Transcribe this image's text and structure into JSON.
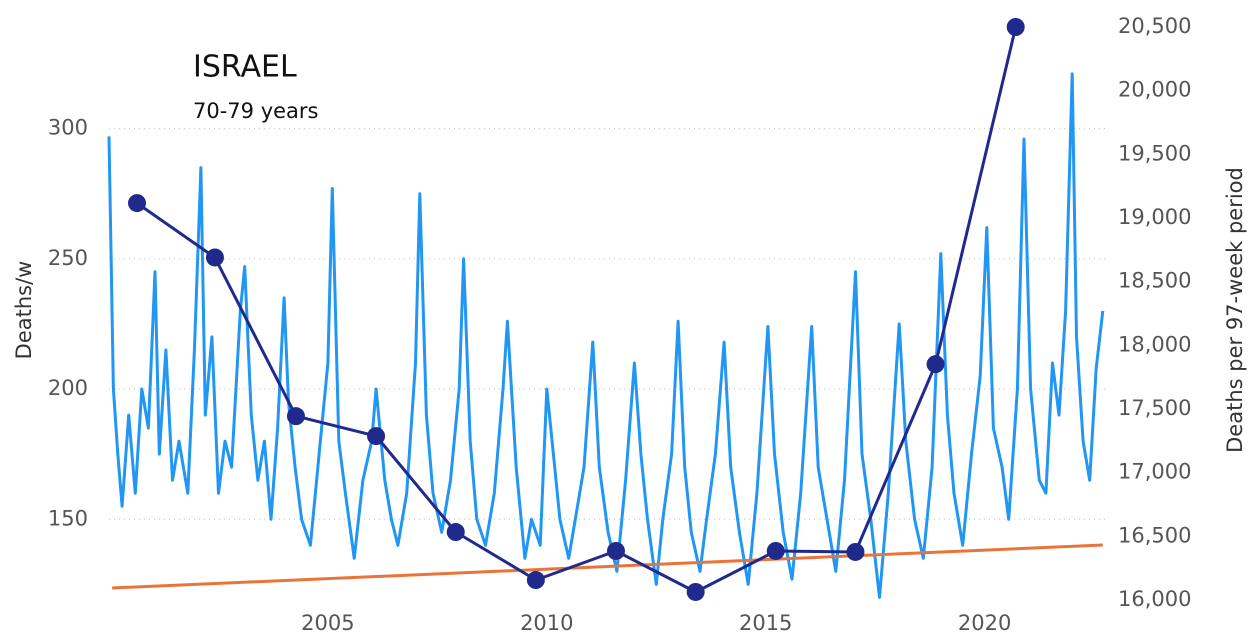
{
  "chart_data": {
    "type": "line",
    "annotations": [
      "ISRAEL",
      "70-79 years"
    ],
    "y_label": "Deaths/w",
    "y2_label": "Deaths per 97-week period",
    "xlim": [
      2000,
      2022.75
    ],
    "xticks": [
      2005,
      2010,
      2015,
      2020
    ],
    "ylim": [
      119,
      339
    ],
    "yticks": [
      150,
      200,
      250,
      300
    ],
    "y2lim": [
      16000,
      20500
    ],
    "y2ticks": [
      {
        "value": 16000,
        "label": "16,000"
      },
      {
        "value": 16500,
        "label": "16,500"
      },
      {
        "value": 17000,
        "label": "17,000"
      },
      {
        "value": 17500,
        "label": "17,500"
      },
      {
        "value": 18000,
        "label": "18,000"
      },
      {
        "value": 18500,
        "label": "18,500"
      },
      {
        "value": 19000,
        "label": "19,000"
      },
      {
        "value": 19500,
        "label": "19,500"
      },
      {
        "value": 20000,
        "label": "20,000"
      },
      {
        "value": 20500,
        "label": "20,500"
      }
    ],
    "grid": true,
    "series": [
      {
        "color": "#2196f3",
        "axis": "y",
        "markers": false,
        "x": [
          2000.0,
          2000.1,
          2000.2,
          2000.3,
          2000.45,
          2000.6,
          2000.75,
          2000.9,
          2001.05,
          2001.15,
          2001.3,
          2001.45,
          2001.6,
          2001.8,
          2001.95,
          2002.1,
          2002.2,
          2002.35,
          2002.5,
          2002.65,
          2002.8,
          2003.0,
          2003.1,
          2003.25,
          2003.4,
          2003.55,
          2003.7,
          2003.85,
          2004.0,
          2004.1,
          2004.25,
          2004.4,
          2004.6,
          2004.8,
          2005.0,
          2005.1,
          2005.25,
          2005.4,
          2005.6,
          2005.8,
          2006.0,
          2006.1,
          2006.3,
          2006.45,
          2006.6,
          2006.8,
          2007.0,
          2007.1,
          2007.25,
          2007.4,
          2007.6,
          2007.8,
          2008.0,
          2008.1,
          2008.25,
          2008.4,
          2008.6,
          2008.8,
          2009.0,
          2009.1,
          2009.3,
          2009.5,
          2009.65,
          2009.85,
          2010.0,
          2010.15,
          2010.3,
          2010.5,
          2010.65,
          2010.85,
          2011.05,
          2011.2,
          2011.4,
          2011.6,
          2011.8,
          2012.0,
          2012.15,
          2012.3,
          2012.5,
          2012.65,
          2012.85,
          2013.0,
          2013.15,
          2013.3,
          2013.5,
          2013.65,
          2013.85,
          2014.05,
          2014.2,
          2014.4,
          2014.6,
          2014.8,
          2015.05,
          2015.2,
          2015.4,
          2015.6,
          2015.8,
          2016.05,
          2016.2,
          2016.4,
          2016.6,
          2016.8,
          2017.05,
          2017.2,
          2017.4,
          2017.6,
          2017.8,
          2018.05,
          2018.2,
          2018.4,
          2018.6,
          2018.8,
          2019.0,
          2019.15,
          2019.3,
          2019.5,
          2019.7,
          2019.9,
          2020.05,
          2020.2,
          2020.4,
          2020.55,
          2020.75,
          2020.9,
          2021.05,
          2021.25,
          2021.4,
          2021.55,
          2021.7,
          2021.85,
          2022.0,
          2022.1,
          2022.25,
          2022.4,
          2022.55,
          2022.7
        ],
        "values": [
          297,
          200,
          175,
          155,
          190,
          160,
          200,
          185,
          245,
          175,
          215,
          165,
          180,
          160,
          215,
          285,
          190,
          220,
          160,
          180,
          170,
          230,
          247,
          190,
          165,
          180,
          150,
          185,
          235,
          195,
          170,
          150,
          140,
          175,
          210,
          277,
          180,
          160,
          135,
          165,
          180,
          200,
          165,
          150,
          140,
          160,
          210,
          275,
          190,
          160,
          145,
          165,
          200,
          250,
          180,
          150,
          140,
          160,
          200,
          226,
          170,
          135,
          150,
          140,
          200,
          175,
          150,
          135,
          150,
          170,
          218,
          170,
          145,
          130,
          165,
          210,
          175,
          150,
          125,
          150,
          175,
          226,
          170,
          145,
          130,
          150,
          175,
          218,
          170,
          145,
          125,
          160,
          224,
          175,
          145,
          127,
          160,
          224,
          170,
          150,
          130,
          165,
          245,
          175,
          150,
          120,
          160,
          225,
          180,
          150,
          135,
          170,
          252,
          190,
          160,
          140,
          175,
          205,
          262,
          185,
          170,
          150,
          200,
          296,
          200,
          165,
          160,
          210,
          190,
          230,
          321,
          220,
          180,
          165,
          208,
          230
        ]
      },
      {
        "color": "#e8743b",
        "axis": "y2",
        "markers": false,
        "x": [
          2000.07,
          2022.7
        ],
        "values": [
          16094,
          16432
        ]
      },
      {
        "color": "#1f2a8c",
        "axis": "y2",
        "markers": true,
        "x": [
          2000.64,
          2002.42,
          2004.27,
          2006.1,
          2007.92,
          2009.75,
          2011.58,
          2013.4,
          2015.23,
          2017.05,
          2018.88,
          2020.71
        ],
        "values": [
          19117,
          18690,
          17444,
          17287,
          16534,
          16157,
          16385,
          16063,
          16385,
          16377,
          17852,
          20500
        ]
      }
    ]
  }
}
